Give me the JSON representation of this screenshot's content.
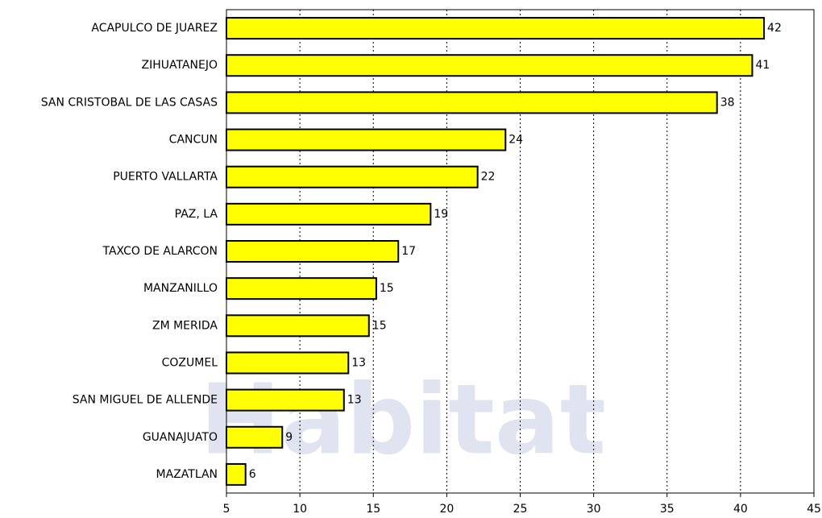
{
  "chart_data": {
    "type": "hbar",
    "watermark": "Habitat",
    "categories": [
      "ACAPULCO DE JUAREZ",
      "ZIHUATANEJO",
      "SAN CRISTOBAL DE LAS CASAS",
      "CANCUN",
      "PUERTO VALLARTA",
      "PAZ, LA",
      "TAXCO DE ALARCON",
      "MANZANILLO",
      "ZM MERIDA",
      "COZUMEL",
      "SAN MIGUEL DE ALLENDE",
      "GUANAJUATO",
      "MAZATLAN"
    ],
    "values": [
      41.6,
      40.8,
      38.4,
      24.0,
      22.1,
      18.9,
      16.7,
      15.2,
      14.7,
      13.3,
      13.0,
      8.8,
      6.3
    ],
    "value_labels": [
      "42",
      "41",
      "38",
      "24",
      "22",
      "19",
      "17",
      "15",
      "15",
      "13",
      "13",
      "9",
      "6"
    ],
    "color": "#ffff00",
    "xlim": [
      5,
      45
    ],
    "xticks": [
      5,
      10,
      15,
      20,
      25,
      30,
      35,
      40,
      45
    ],
    "grid": true
  }
}
